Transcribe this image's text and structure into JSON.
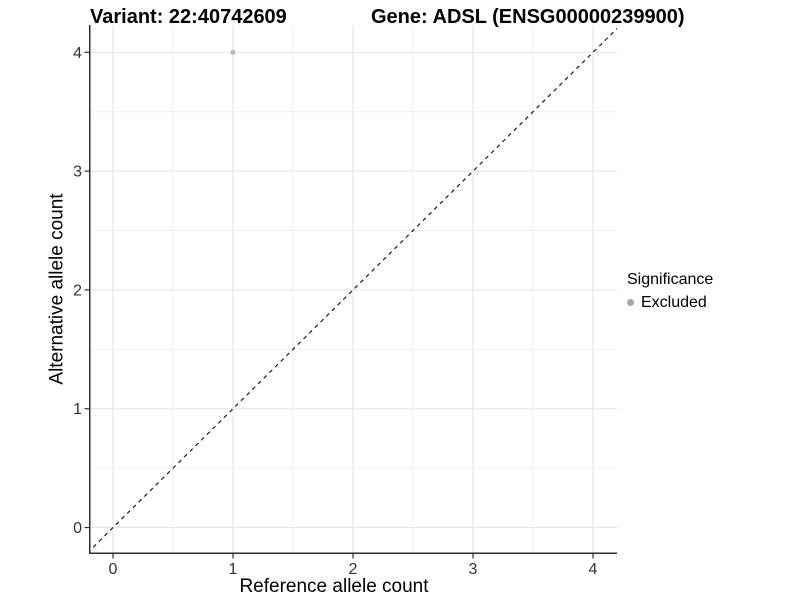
{
  "header": {
    "variant_title": "Variant: 22:40742609",
    "gene_title": "Gene: ADSL (ENSG00000239900)"
  },
  "chart_data": {
    "type": "scatter",
    "title": "Variant: 22:40742609    Gene: ADSL (ENSG00000239900)",
    "xlabel": "Reference allele count",
    "ylabel": "Alternative allele count",
    "xlim": [
      -0.2,
      4.2
    ],
    "ylim": [
      -0.21,
      4.23
    ],
    "x_ticks": [
      0,
      1,
      2,
      3,
      4
    ],
    "y_ticks": [
      0,
      1,
      2,
      3,
      4
    ],
    "grid": {
      "major": true,
      "minor": true
    },
    "series": [
      {
        "name": "Excluded",
        "color": "#bcbcbc",
        "points": [
          {
            "x": 1,
            "y": 4
          }
        ]
      }
    ],
    "identity_line": {
      "equation": "y = x",
      "style": "dashed",
      "color": "#1a1a1a"
    },
    "legend": {
      "title": "Significance",
      "position": "right",
      "items": [
        {
          "label": "Excluded",
          "color": "#a6a6a6"
        }
      ]
    }
  },
  "colors": {
    "background": "#ffffff",
    "grid_major": "#e4e4e4",
    "grid_minor": "#f1f1f1",
    "axis_line": "#2f2f2f",
    "tick_mark": "#2f2f2f",
    "tick_label": "#333333"
  }
}
